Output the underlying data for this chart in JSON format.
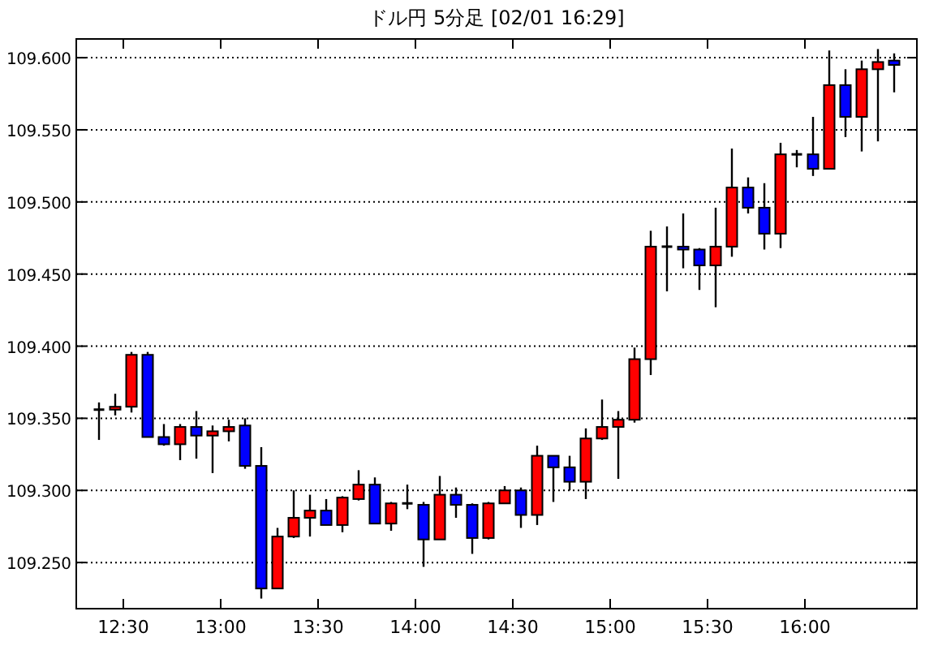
{
  "chart_data": {
    "type": "candlestick",
    "title": "ドル円 5分足 [02/01 16:29]",
    "x": [
      12.375,
      12.4583,
      12.5417,
      12.625,
      12.7083,
      12.7917,
      12.875,
      12.9583,
      13.0417,
      13.125,
      13.2083,
      13.2917,
      13.375,
      13.4583,
      13.5417,
      13.625,
      13.7083,
      13.7917,
      13.875,
      13.9583,
      14.0417,
      14.125,
      14.2083,
      14.2917,
      14.375,
      14.4583,
      14.5417,
      14.625,
      14.7083,
      14.7917,
      14.875,
      14.9583,
      15.0417,
      15.125,
      15.2083,
      15.2917,
      15.375,
      15.4583,
      15.5417,
      15.625,
      15.7083,
      15.7917,
      15.875,
      15.9583,
      16.0417,
      16.125,
      16.2083,
      16.2917,
      16.375,
      16.4583
    ],
    "ohlc": [
      [
        109.356,
        109.361,
        109.335,
        109.356
      ],
      [
        109.356,
        109.367,
        109.352,
        109.358
      ],
      [
        109.358,
        109.396,
        109.354,
        109.394
      ],
      [
        109.394,
        109.396,
        109.337,
        109.337
      ],
      [
        109.337,
        109.346,
        109.331,
        109.332
      ],
      [
        109.332,
        109.346,
        109.321,
        109.344
      ],
      [
        109.344,
        109.355,
        109.322,
        109.338
      ],
      [
        109.338,
        109.345,
        109.312,
        109.341
      ],
      [
        109.341,
        109.349,
        109.334,
        109.344
      ],
      [
        109.345,
        109.35,
        109.315,
        109.317
      ],
      [
        109.317,
        109.33,
        109.225,
        109.232
      ],
      [
        109.232,
        109.274,
        109.232,
        109.268
      ],
      [
        109.268,
        109.3,
        109.267,
        109.281
      ],
      [
        109.281,
        109.297,
        109.268,
        109.286
      ],
      [
        109.286,
        109.294,
        109.276,
        109.276
      ],
      [
        109.276,
        109.296,
        109.271,
        109.295
      ],
      [
        109.294,
        109.314,
        109.293,
        109.304
      ],
      [
        109.304,
        109.309,
        109.277,
        109.277
      ],
      [
        109.277,
        109.292,
        109.272,
        109.291
      ],
      [
        109.291,
        109.304,
        109.287,
        109.291
      ],
      [
        109.29,
        109.292,
        109.247,
        109.266
      ],
      [
        109.266,
        109.31,
        109.266,
        109.297
      ],
      [
        109.297,
        109.302,
        109.281,
        109.29
      ],
      [
        109.29,
        109.291,
        109.256,
        109.267
      ],
      [
        109.267,
        109.292,
        109.266,
        109.291
      ],
      [
        109.291,
        109.303,
        109.291,
        109.3
      ],
      [
        109.3,
        109.302,
        109.274,
        109.283
      ],
      [
        109.283,
        109.331,
        109.276,
        109.324
      ],
      [
        109.324,
        109.324,
        109.292,
        109.316
      ],
      [
        109.316,
        109.324,
        109.3,
        109.306
      ],
      [
        109.306,
        109.343,
        109.294,
        109.336
      ],
      [
        109.336,
        109.363,
        109.335,
        109.344
      ],
      [
        109.344,
        109.355,
        109.308,
        109.349
      ],
      [
        109.349,
        109.399,
        109.347,
        109.391
      ],
      [
        109.391,
        109.48,
        109.38,
        109.469
      ],
      [
        109.469,
        109.483,
        109.438,
        109.469
      ],
      [
        109.469,
        109.492,
        109.454,
        109.467
      ],
      [
        109.467,
        109.468,
        109.439,
        109.456
      ],
      [
        109.456,
        109.496,
        109.427,
        109.469
      ],
      [
        109.469,
        109.537,
        109.462,
        109.51
      ],
      [
        109.51,
        109.517,
        109.492,
        109.496
      ],
      [
        109.496,
        109.513,
        109.467,
        109.478
      ],
      [
        109.478,
        109.541,
        109.468,
        109.533
      ],
      [
        109.533,
        109.536,
        109.524,
        109.533
      ],
      [
        109.533,
        109.559,
        109.518,
        109.523
      ],
      [
        109.523,
        109.605,
        109.523,
        109.581
      ],
      [
        109.581,
        109.592,
        109.545,
        109.559
      ],
      [
        109.559,
        109.598,
        109.535,
        109.592
      ],
      [
        109.592,
        109.606,
        109.542,
        109.597
      ],
      [
        109.598,
        109.603,
        109.576,
        109.595
      ]
    ],
    "colors": [
      "#000000",
      "#ff0000",
      "#ff0000",
      "#0000ff",
      "#0000ff",
      "#ff0000",
      "#0000ff",
      "#ff0000",
      "#ff0000",
      "#0000ff",
      "#0000ff",
      "#ff0000",
      "#ff0000",
      "#ff0000",
      "#0000ff",
      "#ff0000",
      "#ff0000",
      "#0000ff",
      "#ff0000",
      "#000000",
      "#0000ff",
      "#ff0000",
      "#0000ff",
      "#0000ff",
      "#ff0000",
      "#ff0000",
      "#0000ff",
      "#ff0000",
      "#0000ff",
      "#0000ff",
      "#ff0000",
      "#ff0000",
      "#ff0000",
      "#ff0000",
      "#ff0000",
      "#000000",
      "#0000ff",
      "#0000ff",
      "#ff0000",
      "#ff0000",
      "#0000ff",
      "#0000ff",
      "#ff0000",
      "#000000",
      "#0000ff",
      "#ff0000",
      "#0000ff",
      "#ff0000",
      "#ff0000",
      "#0000ff"
    ],
    "xlim": [
      12.2583,
      16.575
    ],
    "xticks": [
      {
        "value": 12.5,
        "label": "12:30"
      },
      {
        "value": 13,
        "label": "13:00"
      },
      {
        "value": 13.5,
        "label": "13:30"
      },
      {
        "value": 14,
        "label": "14:00"
      },
      {
        "value": 14.5,
        "label": "14:30"
      },
      {
        "value": 15,
        "label": "15:00"
      },
      {
        "value": 15.5,
        "label": "15:30"
      },
      {
        "value": 16,
        "label": "16:00"
      }
    ],
    "ylim": [
      109.218,
      109.613
    ],
    "yticks": [
      {
        "value": 109.25,
        "label": "109.250"
      },
      {
        "value": 109.3,
        "label": "109.300"
      },
      {
        "value": 109.35,
        "label": "109.350"
      },
      {
        "value": 109.4,
        "label": "109.400"
      },
      {
        "value": 109.45,
        "label": "109.450"
      },
      {
        "value": 109.5,
        "label": "109.500"
      },
      {
        "value": 109.55,
        "label": "109.550"
      },
      {
        "value": 109.6,
        "label": "109.600"
      }
    ],
    "grid": "y"
  }
}
